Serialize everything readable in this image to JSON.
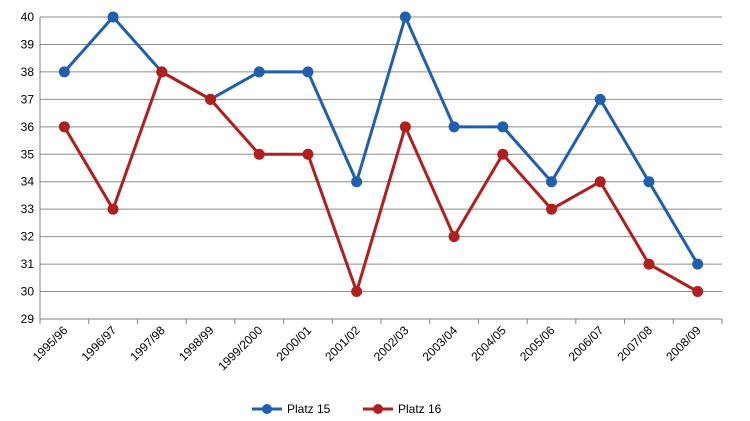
{
  "chart_data": {
    "type": "line",
    "title": "",
    "xlabel": "",
    "ylabel": "",
    "categories": [
      "1995/96",
      "1996/97",
      "1997/98",
      "1998/99",
      "1999/2000",
      "2000/01",
      "2001/02",
      "2002/03",
      "2003/04",
      "2004/05",
      "2005/06",
      "2006/07",
      "2007/08",
      "2008/09"
    ],
    "ylim": [
      29,
      40
    ],
    "yticks": [
      29,
      30,
      31,
      32,
      33,
      34,
      35,
      36,
      37,
      38,
      39,
      40
    ],
    "grid": true,
    "legend": "bottom",
    "series": [
      {
        "name": "Platz 15",
        "color": "#1f5fae",
        "values": [
          38,
          40,
          38,
          37,
          38,
          38,
          34,
          40,
          36,
          36,
          34,
          37,
          34,
          31
        ]
      },
      {
        "name": "Platz 16",
        "color": "#b01e1e",
        "values": [
          36,
          33,
          38,
          37,
          35,
          35,
          30,
          36,
          32,
          35,
          33,
          34,
          31,
          30
        ]
      }
    ]
  }
}
